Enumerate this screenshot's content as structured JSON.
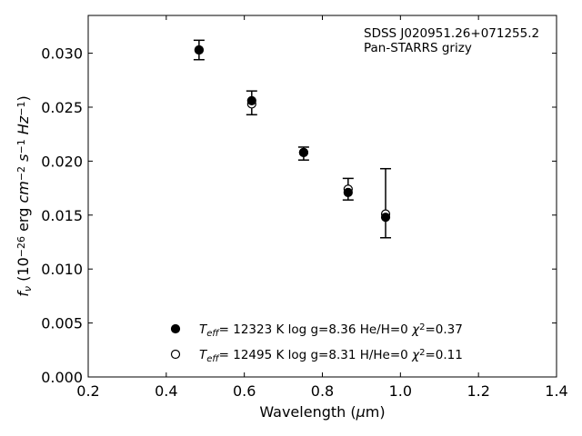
{
  "chart_data": {
    "type": "scatter",
    "xlabel": "Wavelength (μm)",
    "ylabel": "f_ν (10^-26 erg cm^-2 s^-1 Hz^-1)",
    "xlim": [
      0.2,
      1.4
    ],
    "ylim": [
      0.0,
      0.0335
    ],
    "xticks": [
      "0.2",
      "0.4",
      "0.6",
      "0.8",
      "1.0",
      "1.2",
      "1.4"
    ],
    "xtick_values": [
      0.2,
      0.4,
      0.6,
      0.8,
      1.0,
      1.2,
      1.4
    ],
    "yticks": [
      "0.000",
      "0.005",
      "0.010",
      "0.015",
      "0.020",
      "0.025",
      "0.030"
    ],
    "ytick_values": [
      0.0,
      0.005,
      0.01,
      0.015,
      0.02,
      0.025,
      0.03
    ],
    "grid": false,
    "annotation": [
      "SDSS J020951.26+071255.2",
      "Pan-STARRS grizy"
    ],
    "observed": {
      "x": [
        0.484,
        0.619,
        0.752,
        0.866,
        0.962
      ],
      "y": [
        0.0303,
        0.0254,
        0.0207,
        0.0174,
        0.0161
      ],
      "err": [
        0.0009,
        0.0011,
        0.0006,
        0.001,
        0.0032
      ]
    },
    "series": [
      {
        "marker": "filled-circle",
        "label": {
          "teff": "T",
          "teff_sub": "eff",
          "rest": "= 12323 K  log g=8.36  He/H=0  ",
          "chi": "χ",
          "chi_sup": "2",
          "chi_val": "=0.37"
        },
        "x": [
          0.484,
          0.619,
          0.752,
          0.866,
          0.962
        ],
        "y": [
          0.0303,
          0.0256,
          0.0208,
          0.0171,
          0.0148
        ]
      },
      {
        "marker": "open-circle",
        "label": {
          "teff": "T",
          "teff_sub": "eff",
          "rest": "= 12495 K  log g=8.31  H/He=0  ",
          "chi": "χ",
          "chi_sup": "2",
          "chi_val": "=0.11"
        },
        "x": [
          0.484,
          0.619,
          0.752,
          0.866,
          0.962
        ],
        "y": [
          0.0303,
          0.0253,
          0.0208,
          0.0174,
          0.0151
        ]
      }
    ],
    "legend_placement": "lower-center",
    "colors": {
      "marker": "#000000",
      "axis": "#000000"
    }
  }
}
